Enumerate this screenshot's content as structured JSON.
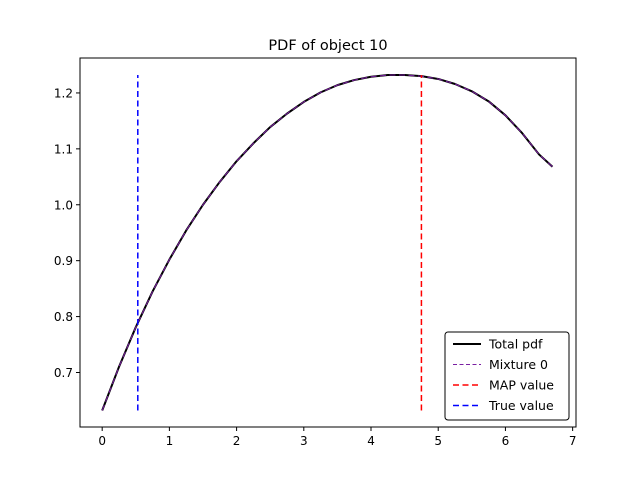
{
  "chart_data": {
    "type": "line",
    "title": "PDF of object 10",
    "xlabel": "",
    "ylabel": "",
    "xlim": [
      -0.33,
      7.05
    ],
    "ylim": [
      0.6025,
      1.2625
    ],
    "xticks": [
      0,
      1,
      2,
      3,
      4,
      5,
      6,
      7
    ],
    "xtick_labels": [
      "0",
      "1",
      "2",
      "3",
      "4",
      "5",
      "6",
      "7"
    ],
    "yticks": [
      0.7,
      0.8,
      0.9,
      1.0,
      1.1,
      1.2
    ],
    "ytick_labels": [
      "0.7",
      "0.8",
      "0.9",
      "1.0",
      "1.1",
      "1.2"
    ],
    "grid": false,
    "legend_position": "lower-right",
    "series": [
      {
        "name": "Total pdf",
        "style": "solid",
        "color": "#000000",
        "x": [
          0,
          0.25,
          0.5,
          0.75,
          1.0,
          1.25,
          1.5,
          1.75,
          2.0,
          2.25,
          2.5,
          2.75,
          3.0,
          3.25,
          3.5,
          3.75,
          4.0,
          4.25,
          4.5,
          4.75,
          5.0,
          5.25,
          5.5,
          5.75,
          6.0,
          6.25,
          6.5,
          6.7
        ],
        "y": [
          0.632,
          0.71,
          0.781,
          0.845,
          0.902,
          0.954,
          1.0,
          1.041,
          1.078,
          1.11,
          1.139,
          1.163,
          1.184,
          1.201,
          1.214,
          1.223,
          1.229,
          1.232,
          1.232,
          1.23,
          1.225,
          1.216,
          1.203,
          1.185,
          1.16,
          1.128,
          1.09,
          1.068
        ]
      },
      {
        "name": "Mixture 0",
        "style": "dashed",
        "color": "#7a1fa2",
        "x": [
          0,
          0.25,
          0.5,
          0.75,
          1.0,
          1.25,
          1.5,
          1.75,
          2.0,
          2.25,
          2.5,
          2.75,
          3.0,
          3.25,
          3.5,
          3.75,
          4.0,
          4.25,
          4.5,
          4.75,
          5.0,
          5.25,
          5.5,
          5.75,
          6.0,
          6.25,
          6.5,
          6.7
        ],
        "y": [
          0.632,
          0.71,
          0.781,
          0.845,
          0.902,
          0.954,
          1.0,
          1.041,
          1.078,
          1.11,
          1.139,
          1.163,
          1.184,
          1.201,
          1.214,
          1.223,
          1.229,
          1.232,
          1.232,
          1.23,
          1.225,
          1.216,
          1.203,
          1.185,
          1.16,
          1.128,
          1.09,
          1.068
        ]
      }
    ],
    "vlines": [
      {
        "name": "MAP value",
        "x": 4.75,
        "y": [
          0.632,
          1.232
        ],
        "style": "dashed",
        "color": "#ff0000"
      },
      {
        "name": "True value",
        "x": 0.53,
        "y": [
          0.632,
          1.232
        ],
        "style": "dashed",
        "color": "#0000ff"
      }
    ],
    "legend": [
      {
        "label": "Total pdf",
        "color": "#000000",
        "style": "solid"
      },
      {
        "label": "Mixture 0",
        "color": "#7a1fa2",
        "style": "dashed-thin"
      },
      {
        "label": "MAP value",
        "color": "#ff0000",
        "style": "dashed"
      },
      {
        "label": "True value",
        "color": "#0000ff",
        "style": "dashed"
      }
    ]
  }
}
